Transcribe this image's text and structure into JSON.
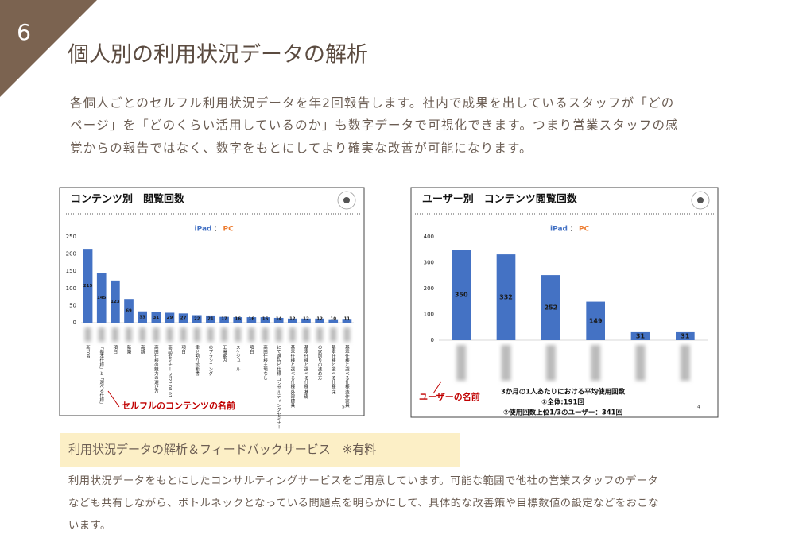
{
  "page_number": "6",
  "title": "個人別の利用状況データの解析",
  "intro": [
    "各個人ごとのセルフル利用状況データを年2回報告します。社内で成果を出しているスタッフが「どの",
    "ページ」を「どのくらい活用しているのか」も数字データで可視化できます。つまり営業スタッフの感",
    "覚からの報告ではなく、数字をもとにしてより確実な改善が可能になります。"
  ],
  "chart_data": [
    {
      "type": "bar",
      "title": "コンテンツ別　閲覧回数",
      "legend": [
        {
          "name": "iPad",
          "color": "#4472c4"
        },
        {
          "name": "PC",
          "color": "#ed7d31"
        }
      ],
      "legend_separator": "：",
      "categories": [
        "新TOP",
        "「基本仕様」と「選べる仕様」",
        "項目",
        "新築",
        "高額",
        "高田仕様の魅力の選び方",
        "商品セミナー 2022.08.01",
        "項目",
        "幸せ割り診断書",
        "のプランニング",
        "工場案内",
        "スケジュール",
        "項目",
        "高田仕様土地なし",
        "にて選択ビ仕様 コンサルティングセミナー",
        "基本仕様と選べる仕様 外部建具",
        "基本仕様と選べる仕様 基礎",
        "の家創りの進め方",
        "基本仕様と選べる仕様 床",
        "基本仕様と選べる仕様 造作家具"
      ],
      "values": [
        215,
        145,
        123,
        69,
        33,
        31,
        29,
        27,
        22,
        21,
        17,
        16,
        16,
        16,
        14,
        12,
        12,
        12,
        10,
        11
      ],
      "color": "#4472c4",
      "ylim": [
        0,
        250
      ],
      "yticks": [
        0,
        50,
        100,
        150,
        200,
        250
      ],
      "annotation": "セルフルのコンテンツの名前",
      "page": "5"
    },
    {
      "type": "bar",
      "title": "ユーザー別　コンテンツ閲覧回数",
      "legend": [
        {
          "name": "iPad",
          "color": "#4472c4"
        },
        {
          "name": "PC",
          "color": "#ed7d31"
        }
      ],
      "legend_separator": "：",
      "categories": [
        null,
        null,
        null,
        null,
        null,
        null
      ],
      "values": [
        350,
        332,
        252,
        149,
        31,
        31
      ],
      "color": "#4472c4",
      "ylim": [
        0,
        400
      ],
      "yticks": [
        0,
        100,
        200,
        300,
        400
      ],
      "annotation": "ユーザーの名前",
      "note": [
        "3か月の1人あたりにおける平均使用回数",
        "①全体:191回",
        "②使用回数上位1/3のユーザー：341回"
      ],
      "page": "4"
    }
  ],
  "service": {
    "title": "利用状況データの解析＆フィードバックサービス　※有料",
    "body": [
      "利用状況データをもとにしたコンサルティングサービスをご用意しています。可能な範囲で他社の営業スタッフのデータ",
      "なども共有しながら、ボトルネックとなっている問題点を明らかにして、具体的な改善策や目標数値の設定などをおこな",
      "います。"
    ]
  }
}
